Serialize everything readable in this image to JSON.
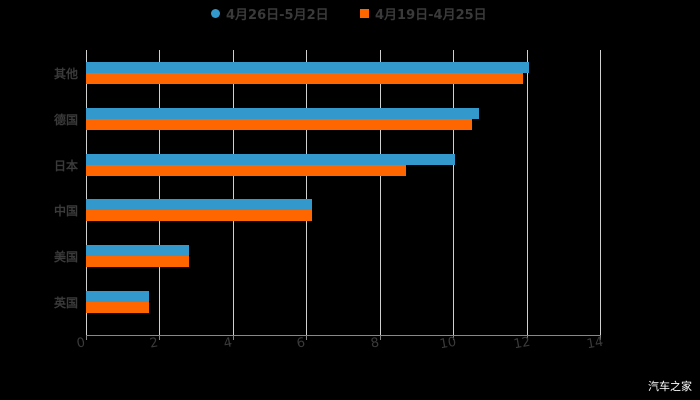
{
  "chart_data": {
    "type": "bar",
    "orientation": "horizontal",
    "title": "",
    "xlabel": "",
    "ylabel": "",
    "categories": [
      "其他",
      "德国",
      "日本",
      "中国",
      "美国",
      "英国"
    ],
    "series": [
      {
        "name": "4月26日-5月2日",
        "color": "#3399cc",
        "values": [
          12.07,
          10.7,
          10.05,
          6.15,
          2.8,
          1.72
        ]
      },
      {
        "name": "4月19日-4月25日",
        "color": "#ff6600",
        "values": [
          11.9,
          10.5,
          8.72,
          6.15,
          2.8,
          1.72
        ]
      }
    ],
    "xlim": [
      0,
      14
    ],
    "xticks": [
      "0",
      "2",
      "4",
      "6",
      "8",
      "10",
      "12",
      "14"
    ],
    "grid": true,
    "legend_position": "top"
  },
  "legend": {
    "series_a": "4月26日-5月2日",
    "series_b": "4月19日-4月25日"
  },
  "watermark": "汽车之家"
}
